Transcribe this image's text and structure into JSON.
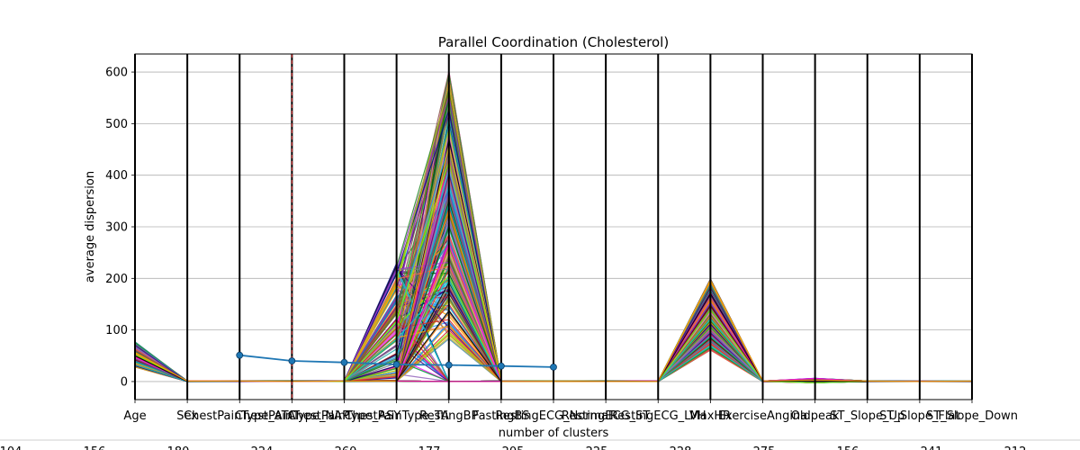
{
  "chart_data": {
    "type": "line",
    "title": "Parallel Coordination (Cholesterol)",
    "xlabel": "number of clusters",
    "ylabel": "average dispersion",
    "ylim": [
      -35,
      635
    ],
    "yticks": [
      0,
      100,
      200,
      300,
      400,
      500,
      600
    ],
    "grid": true,
    "categories": [
      "Age",
      "Sex",
      "ChestPainType_ATA",
      "ChestPainType_NAP",
      "ChestPainType_ASY",
      "ChestPainType_TA",
      "RestingBP",
      "FastingBS",
      "RestingECG_Normal",
      "RestingECG_ST",
      "RestingECG_LVH",
      "MaxHR",
      "ExerciseAngina",
      "Oldpeak",
      "ST_Slope_Up",
      "ST_Slope_Flat",
      "ST_Slope_Down"
    ],
    "bottom_labels": [
      "104",
      "156",
      "180",
      "224",
      "260",
      "177",
      "205",
      "225",
      "228",
      "275",
      "156",
      "241",
      "212"
    ],
    "elbow": {
      "x": [
        "ChestPainType_ATA",
        "ChestPainType_NAP",
        "ChestPainType_ASY",
        "ChestPainType_TA",
        "RestingBP",
        "FastingBS",
        "RestingECG_Normal"
      ],
      "values": [
        51,
        40,
        37,
        33,
        32,
        30,
        28
      ],
      "color": "#1f77b4"
    },
    "highlight_axis": "ChestPainType_NAP",
    "series_note": "one line per record, colored by Cholesterol value",
    "ranges": {
      "Age": [
        28,
        77
      ],
      "Sex": [
        0,
        1
      ],
      "ChestPainType_ATA": [
        0,
        1
      ],
      "ChestPainType_NAP": [
        0,
        1
      ],
      "ChestPainType_ASY": [
        0,
        1
      ],
      "ChestPainType_TA": [
        0,
        1
      ],
      "RestingBP": [
        80,
        200
      ],
      "FastingBS": [
        0,
        1
      ],
      "RestingECG_Normal": [
        0,
        1
      ],
      "RestingECG_ST": [
        0,
        1
      ],
      "RestingECG_LVH": [
        0,
        1
      ],
      "MaxHR": [
        60,
        202
      ],
      "ExerciseAngina": [
        0,
        1
      ],
      "Oldpeak": [
        -2.6,
        6.2
      ],
      "ST_Slope_Up": [
        0,
        1
      ],
      "ST_Slope_Flat": [
        0,
        1
      ],
      "ST_Slope_Down": [
        0,
        1
      ]
    },
    "cholesterol_range": [
      0,
      603
    ]
  }
}
